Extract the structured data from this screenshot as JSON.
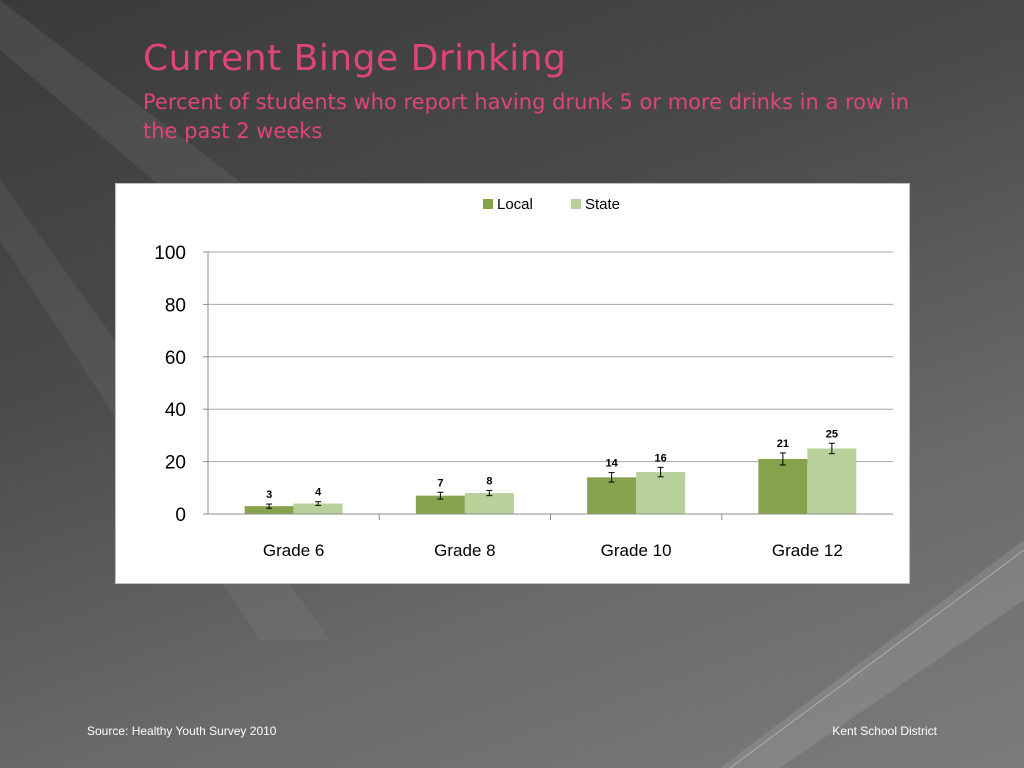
{
  "slide": {
    "title": "Current Binge Drinking",
    "subtitle": "Percent of students who report having drunk 5 or more drinks in a row in the past 2 weeks",
    "source": "Source: Healthy Youth Survey 2010",
    "organization": "Kent School District",
    "title_color": "#e0457a"
  },
  "chart_data": {
    "type": "bar",
    "categories": [
      "Grade 6",
      "Grade 8",
      "Grade 10",
      "Grade 12"
    ],
    "series": [
      {
        "name": "Local",
        "values": [
          3,
          7,
          14,
          21
        ],
        "error": [
          0.8,
          1.3,
          1.8,
          2.3
        ],
        "color": "#86a24c"
      },
      {
        "name": "State",
        "values": [
          4,
          8,
          16,
          25
        ],
        "error": [
          0.7,
          1.0,
          1.8,
          2.0
        ],
        "color": "#b8d19a"
      }
    ],
    "ylim": [
      0,
      100
    ],
    "yticks": [
      0,
      20,
      40,
      60,
      80,
      100
    ],
    "xlabel": "",
    "ylabel": "",
    "legend_position": "top-center",
    "grid": true
  }
}
